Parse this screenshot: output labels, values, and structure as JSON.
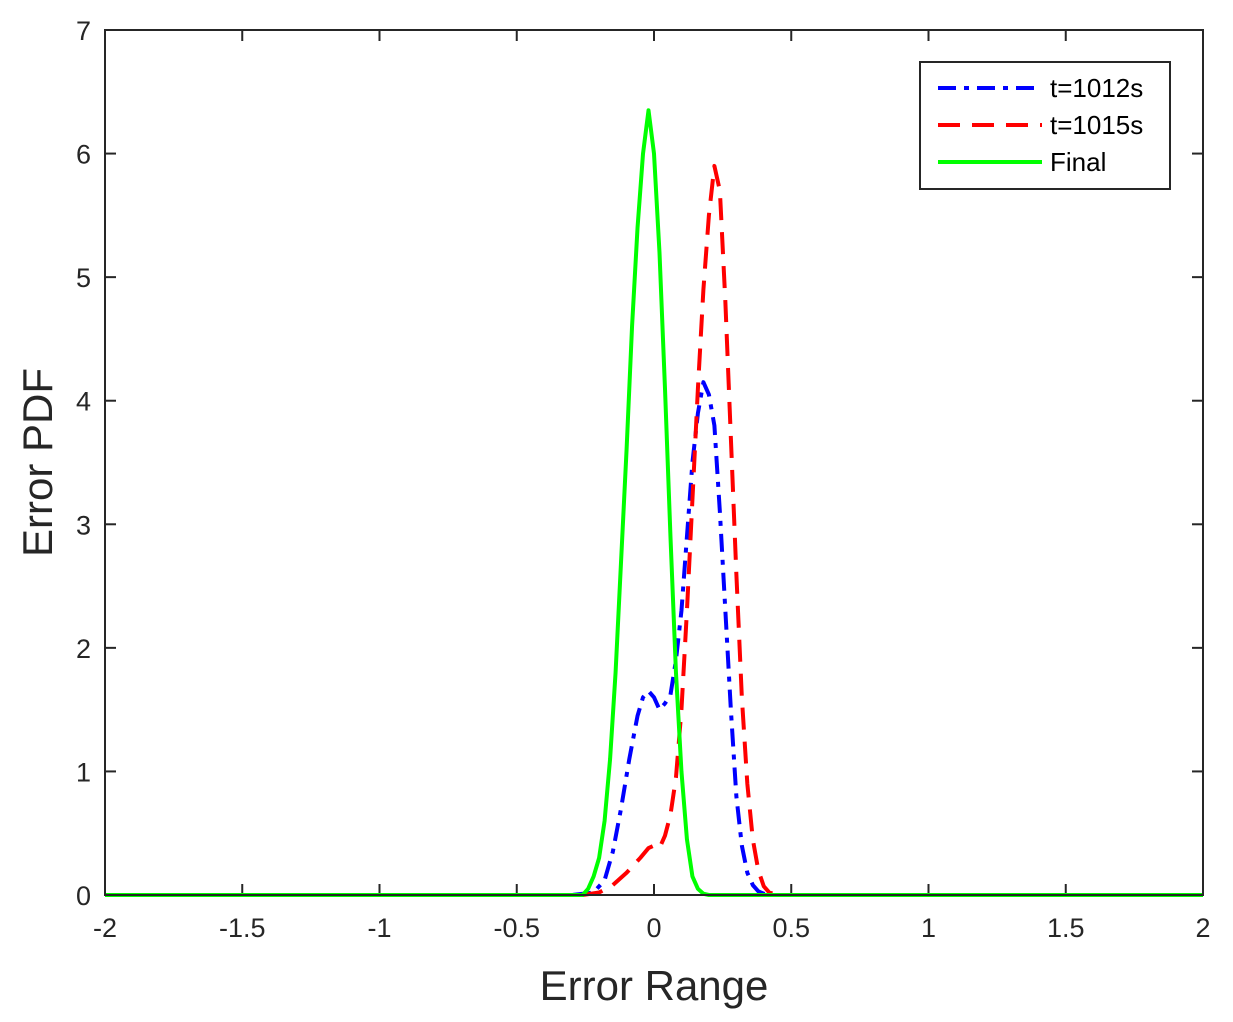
{
  "chart_data": {
    "type": "line",
    "title": "",
    "xlabel": "Error Range",
    "ylabel": "Error PDF",
    "xlim": [
      -2,
      2
    ],
    "ylim": [
      0,
      7
    ],
    "xticks": [
      -2,
      -1.5,
      -1,
      -0.5,
      0,
      0.5,
      1,
      1.5,
      2
    ],
    "xtick_labels": [
      "-2",
      "-1.5",
      "-1",
      "-0.5",
      "0",
      "0.5",
      "1",
      "1.5",
      "2"
    ],
    "yticks": [
      0,
      1,
      2,
      3,
      4,
      5,
      6,
      7
    ],
    "ytick_labels": [
      "0",
      "1",
      "2",
      "3",
      "4",
      "5",
      "6",
      "7"
    ],
    "grid": false,
    "legend_position": "top-right",
    "series": [
      {
        "name": "t=1012s",
        "color": "#0000ff",
        "style": "dashdot",
        "x": [
          -2,
          -0.3,
          -0.22,
          -0.18,
          -0.15,
          -0.12,
          -0.09,
          -0.06,
          -0.04,
          -0.02,
          0.0,
          0.02,
          0.04,
          0.06,
          0.08,
          0.1,
          0.12,
          0.14,
          0.16,
          0.18,
          0.2,
          0.22,
          0.24,
          0.26,
          0.28,
          0.3,
          0.32,
          0.34,
          0.36,
          0.38,
          0.4,
          0.42,
          0.5,
          2
        ],
        "values": [
          0,
          0,
          0.02,
          0.12,
          0.35,
          0.7,
          1.1,
          1.45,
          1.6,
          1.65,
          1.6,
          1.5,
          1.55,
          1.62,
          1.9,
          2.3,
          2.9,
          3.5,
          3.9,
          4.15,
          4.05,
          3.8,
          3.1,
          2.3,
          1.5,
          0.8,
          0.4,
          0.18,
          0.08,
          0.03,
          0.01,
          0,
          0,
          0
        ]
      },
      {
        "name": "t=1015s",
        "color": "#ff0000",
        "style": "dashed",
        "x": [
          -2,
          -0.26,
          -0.2,
          -0.15,
          -0.1,
          -0.05,
          -0.02,
          0.0,
          0.02,
          0.04,
          0.06,
          0.08,
          0.1,
          0.12,
          0.14,
          0.16,
          0.18,
          0.2,
          0.22,
          0.24,
          0.26,
          0.28,
          0.3,
          0.32,
          0.34,
          0.36,
          0.38,
          0.4,
          0.42,
          0.45,
          2
        ],
        "values": [
          0,
          0,
          0.02,
          0.08,
          0.18,
          0.3,
          0.38,
          0.4,
          0.38,
          0.48,
          0.65,
          0.95,
          1.5,
          2.3,
          3.2,
          4.1,
          4.9,
          5.5,
          5.9,
          5.7,
          4.8,
          3.7,
          2.6,
          1.6,
          0.9,
          0.45,
          0.2,
          0.07,
          0.02,
          0,
          0
        ]
      },
      {
        "name": "Final",
        "color": "#00ff00",
        "style": "solid",
        "x": [
          -2,
          -0.26,
          -0.24,
          -0.22,
          -0.2,
          -0.18,
          -0.16,
          -0.14,
          -0.12,
          -0.1,
          -0.08,
          -0.06,
          -0.04,
          -0.02,
          0.0,
          0.02,
          0.04,
          0.06,
          0.08,
          0.1,
          0.12,
          0.14,
          0.16,
          0.18,
          0.2,
          2
        ],
        "values": [
          0,
          0,
          0.05,
          0.15,
          0.3,
          0.6,
          1.1,
          1.8,
          2.7,
          3.6,
          4.6,
          5.4,
          6.0,
          6.35,
          6.0,
          5.2,
          4.1,
          2.9,
          1.8,
          1.0,
          0.45,
          0.15,
          0.05,
          0.01,
          0,
          0
        ]
      }
    ]
  }
}
